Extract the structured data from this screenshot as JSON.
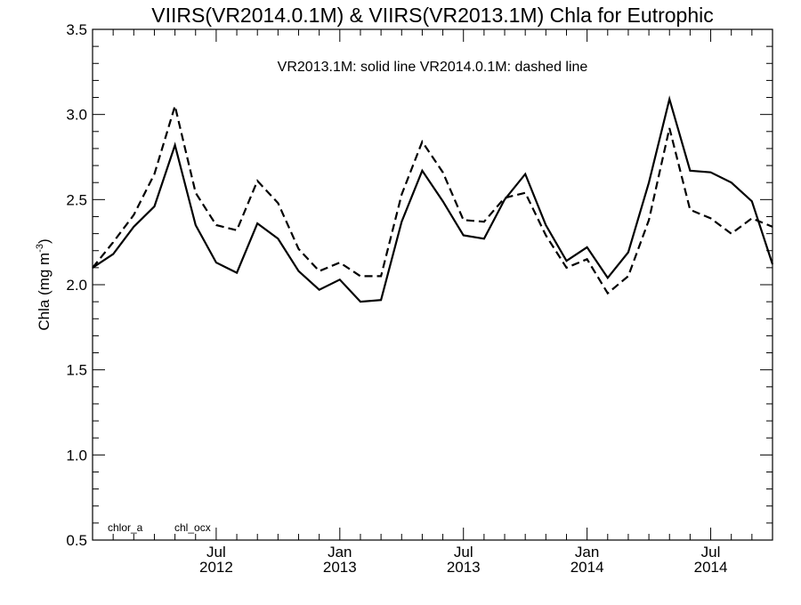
{
  "chart_data": {
    "type": "line",
    "title": "VIIRS(VR2014.0.1M) & VIIRS(VR2013.1M)  Chla for Eutrophic",
    "ylabel_main": "Chla (mg m",
    "ylabel_sup": "-3",
    "ylabel_close": ")",
    "annotation": "VR2013.1M: solid line   VR2014.0.1M: dashed line",
    "corner_labels": [
      "chlor_a",
      "chl_ocx"
    ],
    "ylim": [
      0.5,
      3.5
    ],
    "yticks": [
      "0.5",
      "1.0",
      "1.5",
      "2.0",
      "2.5",
      "3.0",
      "3.5"
    ],
    "xlim": [
      "2012-01",
      "2014-10"
    ],
    "xticks": [
      {
        "month": "2012-07",
        "line1": "Jul",
        "line2": "2012"
      },
      {
        "month": "2013-01",
        "line1": "Jan",
        "line2": "2013"
      },
      {
        "month": "2013-07",
        "line1": "Jul",
        "line2": "2013"
      },
      {
        "month": "2014-01",
        "line1": "Jan",
        "line2": "2014"
      },
      {
        "month": "2014-07",
        "line1": "Jul",
        "line2": "2014"
      }
    ],
    "grid": false,
    "x": [
      "2012-01",
      "2012-02",
      "2012-03",
      "2012-04",
      "2012-05",
      "2012-06",
      "2012-07",
      "2012-08",
      "2012-09",
      "2012-10",
      "2012-11",
      "2012-12",
      "2013-01",
      "2013-02",
      "2013-03",
      "2013-04",
      "2013-05",
      "2013-06",
      "2013-07",
      "2013-08",
      "2013-09",
      "2013-10",
      "2013-11",
      "2013-12",
      "2014-01",
      "2014-02",
      "2014-03",
      "2014-04",
      "2014-05",
      "2014-06",
      "2014-07",
      "2014-08",
      "2014-09",
      "2014-10"
    ],
    "series": [
      {
        "style": "solid",
        "values": [
          2.1,
          2.18,
          2.34,
          2.46,
          2.82,
          2.35,
          2.13,
          2.07,
          2.36,
          2.27,
          2.08,
          1.97,
          2.03,
          1.9,
          1.91,
          2.37,
          2.67,
          2.49,
          2.29,
          2.27,
          2.5,
          2.65,
          2.35,
          2.14,
          2.22,
          2.04,
          2.19,
          2.6,
          3.09,
          2.67,
          2.66,
          2.6,
          2.49,
          2.12
        ]
      },
      {
        "style": "dashed",
        "values": [
          2.1,
          2.25,
          2.41,
          2.65,
          3.05,
          2.54,
          2.35,
          2.32,
          2.61,
          2.48,
          2.21,
          2.08,
          2.13,
          2.05,
          2.05,
          2.53,
          2.84,
          2.66,
          2.38,
          2.37,
          2.51,
          2.54,
          2.29,
          2.1,
          2.15,
          1.95,
          2.05,
          2.38,
          2.92,
          2.44,
          2.39,
          2.3,
          2.39,
          2.34
        ]
      }
    ]
  }
}
